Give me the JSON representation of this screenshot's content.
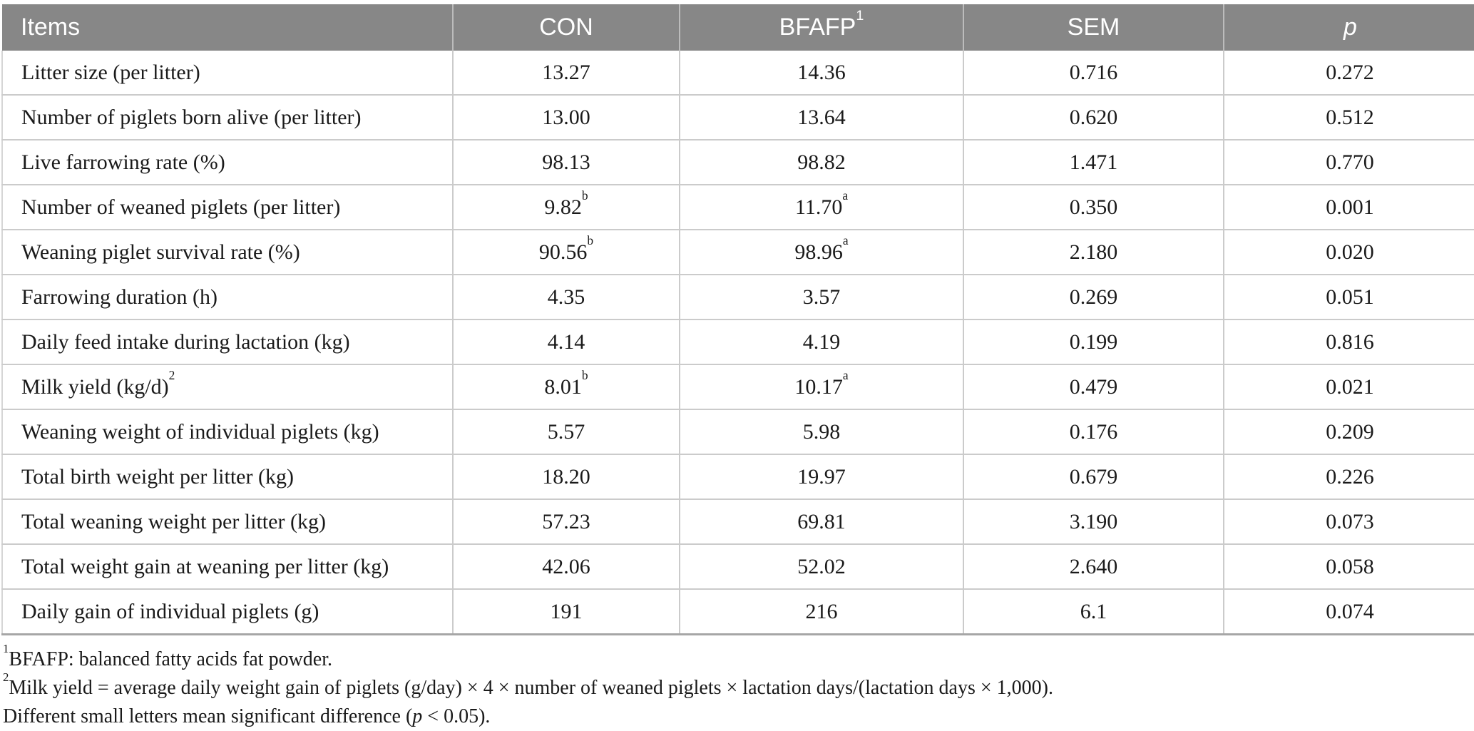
{
  "colors": {
    "header_bg": "#878787",
    "header_text": "#ffffff",
    "grid_line": "#cbcbcb",
    "table_bottom_border": "#a6a6a6",
    "body_text": "#1a1a1a"
  },
  "table": {
    "columns": [
      {
        "label": "Items",
        "sup": "",
        "align": "left"
      },
      {
        "label": "CON",
        "sup": "",
        "align": "center"
      },
      {
        "label": "BFAFP",
        "sup": "1",
        "align": "center"
      },
      {
        "label": "SEM",
        "sup": "",
        "align": "center"
      },
      {
        "label": "p",
        "sup": "",
        "align": "center",
        "italic": true
      }
    ],
    "rows": [
      {
        "item": "Litter size (per litter)",
        "item_sup": "",
        "con": "13.27",
        "con_sup": "",
        "bfafp": "14.36",
        "bfafp_sup": "",
        "sem": "0.716",
        "p": "0.272"
      },
      {
        "item": "Number of piglets born alive (per litter)",
        "item_sup": "",
        "con": "13.00",
        "con_sup": "",
        "bfafp": "13.64",
        "bfafp_sup": "",
        "sem": "0.620",
        "p": "0.512"
      },
      {
        "item": "Live farrowing rate (%)",
        "item_sup": "",
        "con": "98.13",
        "con_sup": "",
        "bfafp": "98.82",
        "bfafp_sup": "",
        "sem": "1.471",
        "p": "0.770"
      },
      {
        "item": "Number of weaned piglets (per litter)",
        "item_sup": "",
        "con": "9.82",
        "con_sup": "b",
        "bfafp": "11.70",
        "bfafp_sup": "a",
        "sem": "0.350",
        "p": "0.001"
      },
      {
        "item": "Weaning piglet survival rate (%)",
        "item_sup": "",
        "con": "90.56",
        "con_sup": "b",
        "bfafp": "98.96",
        "bfafp_sup": "a",
        "sem": "2.180",
        "p": "0.020"
      },
      {
        "item": "Farrowing duration (h)",
        "item_sup": "",
        "con": "4.35",
        "con_sup": "",
        "bfafp": "3.57",
        "bfafp_sup": "",
        "sem": "0.269",
        "p": "0.051"
      },
      {
        "item": "Daily feed intake during lactation (kg)",
        "item_sup": "",
        "con": "4.14",
        "con_sup": "",
        "bfafp": "4.19",
        "bfafp_sup": "",
        "sem": "0.199",
        "p": "0.816"
      },
      {
        "item": "Milk yield (kg/d)",
        "item_sup": "2",
        "con": "8.01",
        "con_sup": "b",
        "bfafp": "10.17",
        "bfafp_sup": "a",
        "sem": "0.479",
        "p": "0.021"
      },
      {
        "item": "Weaning weight of individual piglets (kg)",
        "item_sup": "",
        "con": "5.57",
        "con_sup": "",
        "bfafp": "5.98",
        "bfafp_sup": "",
        "sem": "0.176",
        "p": "0.209"
      },
      {
        "item": "Total birth weight per litter (kg)",
        "item_sup": "",
        "con": "18.20",
        "con_sup": "",
        "bfafp": "19.97",
        "bfafp_sup": "",
        "sem": "0.679",
        "p": "0.226"
      },
      {
        "item": "Total weaning weight per litter (kg)",
        "item_sup": "",
        "con": "57.23",
        "con_sup": "",
        "bfafp": "69.81",
        "bfafp_sup": "",
        "sem": "3.190",
        "p": "0.073"
      },
      {
        "item": "Total weight gain at weaning per litter (kg)",
        "item_sup": "",
        "con": "42.06",
        "con_sup": "",
        "bfafp": "52.02",
        "bfafp_sup": "",
        "sem": "2.640",
        "p": "0.058"
      },
      {
        "item": "Daily gain of individual piglets (g)",
        "item_sup": "",
        "con": "191",
        "con_sup": "",
        "bfafp": "216",
        "bfafp_sup": "",
        "sem": "6.1",
        "p": "0.074"
      }
    ]
  },
  "footnotes": [
    {
      "sup": "1",
      "pre": "BFAFP: balanced fatty acids fat powder.",
      "italic": "",
      "post": ""
    },
    {
      "sup": "2",
      "pre": "Milk yield = average daily weight gain of piglets (g/day) × 4 × number of weaned piglets × lactation days/(lactation days × 1,000).",
      "italic": "",
      "post": ""
    },
    {
      "sup": "",
      "pre": "Different small letters mean significant difference (",
      "italic": "p",
      "post": " < 0.05)."
    }
  ]
}
